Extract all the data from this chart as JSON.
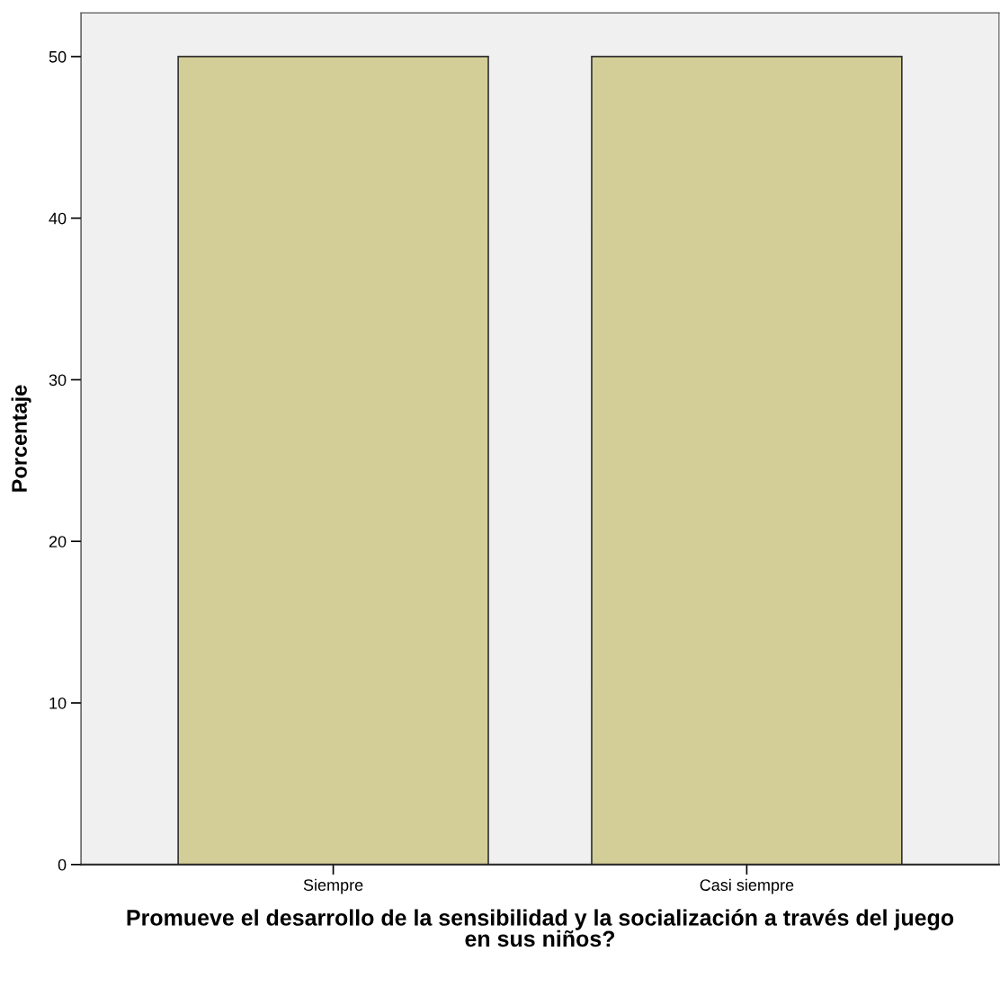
{
  "chart_data": {
    "type": "bar",
    "categories": [
      "Siempre",
      "Casi siempre"
    ],
    "values": [
      50,
      50
    ],
    "color": "#d3ce97",
    "xlabel": "Promueve el desarrollo de la sensibilidad y la socialización a través del juego\nen sus niños?",
    "ylabel": "Porcentaje",
    "ylim": [
      0,
      52.7
    ],
    "yticks": [
      0,
      10,
      20,
      30,
      40,
      50
    ],
    "grid": false
  }
}
